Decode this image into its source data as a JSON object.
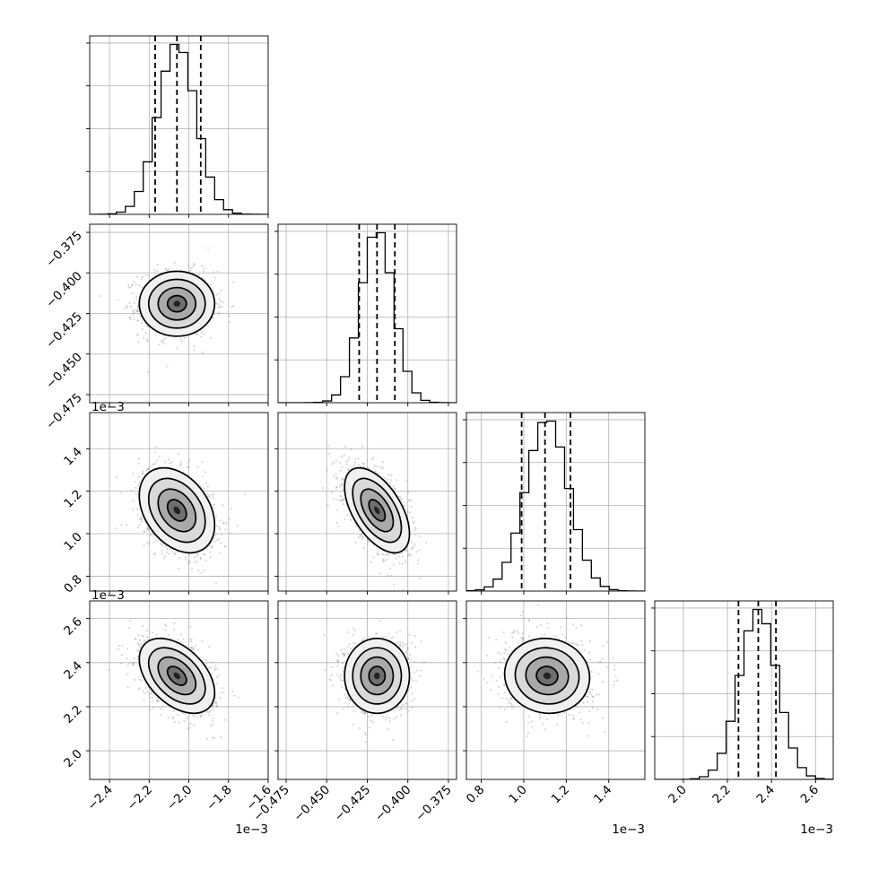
{
  "chart_data": {
    "type": "corner",
    "params": [
      {
        "mean": -2.06,
        "sd": 0.095,
        "q": [
          -2.17,
          -2.06,
          -1.94
        ],
        "range": [
          -2.5,
          -1.6
        ],
        "ticks": [
          -2.4,
          -2.2,
          -2.0,
          -1.8,
          -1.6
        ],
        "tick_labels": [
          "−2.4",
          "−2.2",
          "−2.0",
          "−1.8",
          "−1.6"
        ],
        "offset": "1e−3"
      },
      {
        "mean": -0.419,
        "sd": 0.01,
        "q": [
          -0.43,
          -0.419,
          -0.408
        ],
        "range": [
          -0.48,
          -0.37
        ],
        "ticks": [
          -0.475,
          -0.45,
          -0.425,
          -0.4,
          -0.375
        ],
        "tick_labels": [
          "−0.475",
          "−0.450",
          "−0.425",
          "−0.400",
          "−0.375"
        ],
        "offset": ""
      },
      {
        "mean": 1.11,
        "sd": 0.1,
        "q": [
          0.99,
          1.1,
          1.22
        ],
        "range": [
          0.73,
          1.57
        ],
        "ticks": [
          0.8,
          1.0,
          1.2,
          1.4
        ],
        "tick_labels": [
          "0.8",
          "1.0",
          "1.2",
          "1.4"
        ],
        "offset": "1e−3"
      },
      {
        "mean": 2.34,
        "sd": 0.085,
        "q": [
          2.25,
          2.34,
          2.42
        ],
        "range": [
          1.87,
          2.68
        ],
        "ticks": [
          2.0,
          2.2,
          2.4,
          2.6
        ],
        "tick_labels": [
          "2.0",
          "2.2",
          "2.4",
          "2.6"
        ],
        "offset": "1e−3"
      }
    ],
    "correlations": [
      [
        1,
        0,
        0,
        0
      ],
      [
        0,
        1,
        0,
        0
      ],
      [
        -0.35,
        -0.55,
        1,
        0
      ],
      [
        -0.45,
        0,
        -0.05,
        1
      ]
    ],
    "contour_levels_sigma": [
      0.5,
      1.0,
      1.5,
      2.0
    ],
    "quantiles": [
      0.16,
      0.5,
      0.84
    ],
    "grid": true
  }
}
